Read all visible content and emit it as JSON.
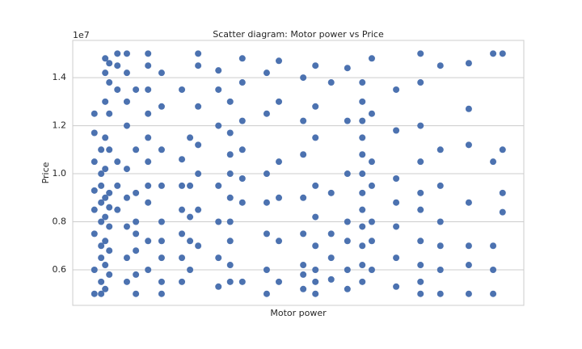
{
  "chart_data": {
    "type": "scatter",
    "title": "Scatter diagram: Motor power vs Price",
    "x_label": "Motor power",
    "y_label": "Price",
    "y_offset_label": "1e7",
    "color": "#4c72b0",
    "grid": true,
    "xlim": [
      0,
      100
    ],
    "ylim": [
      0.452,
      1.555
    ],
    "yticks": [
      0.6,
      0.8,
      {
        "value": 1,
        "label": "1.0"
      },
      1.2,
      1.4
    ],
    "x": [
      4.8,
      4.8,
      4.8,
      4.8,
      4.8,
      4.8,
      4.8,
      4.8,
      6.3,
      6.3,
      6.3,
      6.3,
      6.3,
      6.3,
      6.3,
      6.3,
      6.3,
      7.2,
      7.2,
      7.2,
      7.2,
      7.2,
      7.2,
      7.2,
      7.2,
      7.2,
      7.2,
      8.1,
      8.1,
      8.1,
      8.1,
      8.1,
      8.1,
      8.1,
      8.1,
      8.1,
      9.9,
      9.9,
      9.9,
      9.9,
      9.9,
      9.9,
      12.0,
      12.0,
      12.0,
      12.0,
      12.0,
      12.0,
      12.0,
      12.0,
      12.0,
      14.0,
      14.0,
      14.0,
      14.0,
      14.0,
      14.0,
      14.0,
      14.0,
      16.7,
      16.7,
      16.7,
      16.7,
      16.7,
      16.7,
      16.7,
      16.7,
      16.7,
      16.7,
      19.7,
      19.7,
      19.7,
      19.7,
      19.7,
      19.7,
      19.7,
      19.7,
      19.7,
      24.2,
      24.2,
      24.2,
      24.2,
      24.2,
      24.2,
      24.2,
      26.0,
      26.0,
      26.0,
      26.0,
      26.0,
      27.8,
      27.8,
      27.8,
      27.8,
      27.8,
      27.8,
      27.8,
      32.3,
      32.3,
      32.3,
      32.3,
      32.3,
      32.3,
      32.3,
      34.9,
      34.9,
      34.9,
      34.9,
      34.9,
      34.9,
      34.9,
      34.9,
      34.9,
      37.6,
      37.6,
      37.6,
      37.6,
      37.6,
      37.6,
      37.6,
      43.0,
      43.0,
      43.0,
      43.0,
      43.0,
      43.0,
      43.0,
      45.7,
      45.7,
      45.7,
      45.7,
      45.7,
      45.7,
      51.1,
      51.1,
      51.1,
      51.1,
      51.1,
      51.1,
      51.1,
      51.1,
      53.8,
      53.8,
      53.8,
      53.8,
      53.8,
      53.8,
      53.8,
      53.8,
      53.8,
      57.3,
      57.3,
      57.3,
      57.3,
      57.3,
      60.9,
      60.9,
      60.9,
      60.9,
      60.9,
      60.9,
      60.9,
      64.2,
      64.2,
      64.2,
      64.2,
      64.2,
      64.2,
      64.2,
      64.2,
      64.2,
      64.2,
      64.2,
      64.2,
      66.3,
      66.3,
      66.3,
      66.3,
      66.3,
      66.3,
      66.3,
      71.7,
      71.7,
      71.7,
      71.7,
      71.7,
      71.7,
      71.7,
      77.1,
      77.1,
      77.1,
      77.1,
      77.1,
      77.1,
      77.1,
      77.1,
      77.1,
      77.1,
      81.5,
      81.5,
      81.5,
      81.5,
      81.5,
      81.5,
      81.5,
      87.8,
      87.8,
      87.8,
      87.8,
      87.8,
      87.8,
      87.8,
      93.2,
      93.2,
      93.2,
      93.2,
      93.2,
      95.3,
      95.3,
      95.3,
      95.3
    ],
    "values": [
      0.5,
      0.6,
      0.75,
      0.85,
      0.93,
      1.05,
      1.17,
      1.25,
      0.5,
      0.55,
      0.65,
      0.7,
      0.8,
      0.88,
      0.95,
      1.0,
      1.1,
      0.52,
      0.62,
      0.72,
      0.82,
      0.9,
      1.02,
      1.15,
      1.3,
      1.42,
      1.48,
      0.58,
      0.68,
      0.78,
      0.86,
      0.92,
      1.1,
      1.25,
      1.38,
      1.46,
      0.85,
      0.95,
      1.05,
      1.35,
      1.45,
      1.5,
      0.55,
      0.65,
      0.78,
      0.9,
      1.02,
      1.2,
      1.3,
      1.42,
      1.5,
      0.5,
      0.58,
      0.68,
      0.75,
      0.8,
      0.92,
      1.1,
      1.35,
      0.6,
      0.72,
      0.88,
      0.95,
      1.05,
      1.15,
      1.25,
      1.35,
      1.45,
      1.5,
      0.5,
      0.55,
      0.65,
      0.72,
      0.8,
      0.95,
      1.1,
      1.28,
      1.42,
      0.55,
      0.65,
      0.75,
      0.85,
      0.95,
      1.06,
      1.35,
      0.6,
      0.72,
      0.82,
      0.95,
      1.15,
      0.7,
      0.85,
      1.0,
      1.12,
      1.28,
      1.45,
      1.5,
      0.53,
      0.65,
      0.8,
      0.95,
      1.2,
      1.35,
      1.43,
      0.55,
      0.62,
      0.72,
      0.8,
      0.9,
      1.0,
      1.08,
      1.17,
      1.3,
      0.55,
      0.88,
      0.98,
      1.1,
      1.22,
      1.38,
      1.48,
      0.5,
      0.6,
      0.75,
      0.88,
      1.0,
      1.25,
      1.42,
      0.55,
      0.72,
      0.9,
      1.05,
      1.3,
      1.47,
      0.52,
      0.58,
      0.62,
      0.75,
      0.9,
      1.08,
      1.22,
      1.4,
      0.5,
      0.55,
      0.6,
      0.7,
      0.82,
      0.95,
      1.15,
      1.28,
      1.45,
      0.56,
      0.65,
      0.75,
      0.92,
      1.38,
      0.52,
      0.6,
      0.72,
      0.8,
      1.0,
      1.22,
      1.44,
      0.55,
      0.62,
      0.7,
      0.78,
      0.85,
      0.92,
      1.0,
      1.08,
      1.15,
      1.22,
      1.3,
      1.38,
      0.6,
      0.72,
      0.8,
      0.95,
      1.05,
      1.25,
      1.48,
      0.53,
      0.65,
      0.78,
      0.88,
      0.98,
      1.18,
      1.35,
      0.5,
      0.55,
      0.62,
      0.72,
      0.85,
      0.92,
      1.05,
      1.2,
      1.38,
      1.5,
      0.5,
      0.6,
      0.7,
      0.8,
      0.95,
      1.1,
      1.45,
      0.5,
      0.62,
      0.7,
      0.88,
      1.12,
      1.27,
      1.46,
      0.5,
      0.6,
      0.7,
      1.05,
      1.5,
      0.84,
      0.92,
      1.1,
      1.5
    ]
  }
}
